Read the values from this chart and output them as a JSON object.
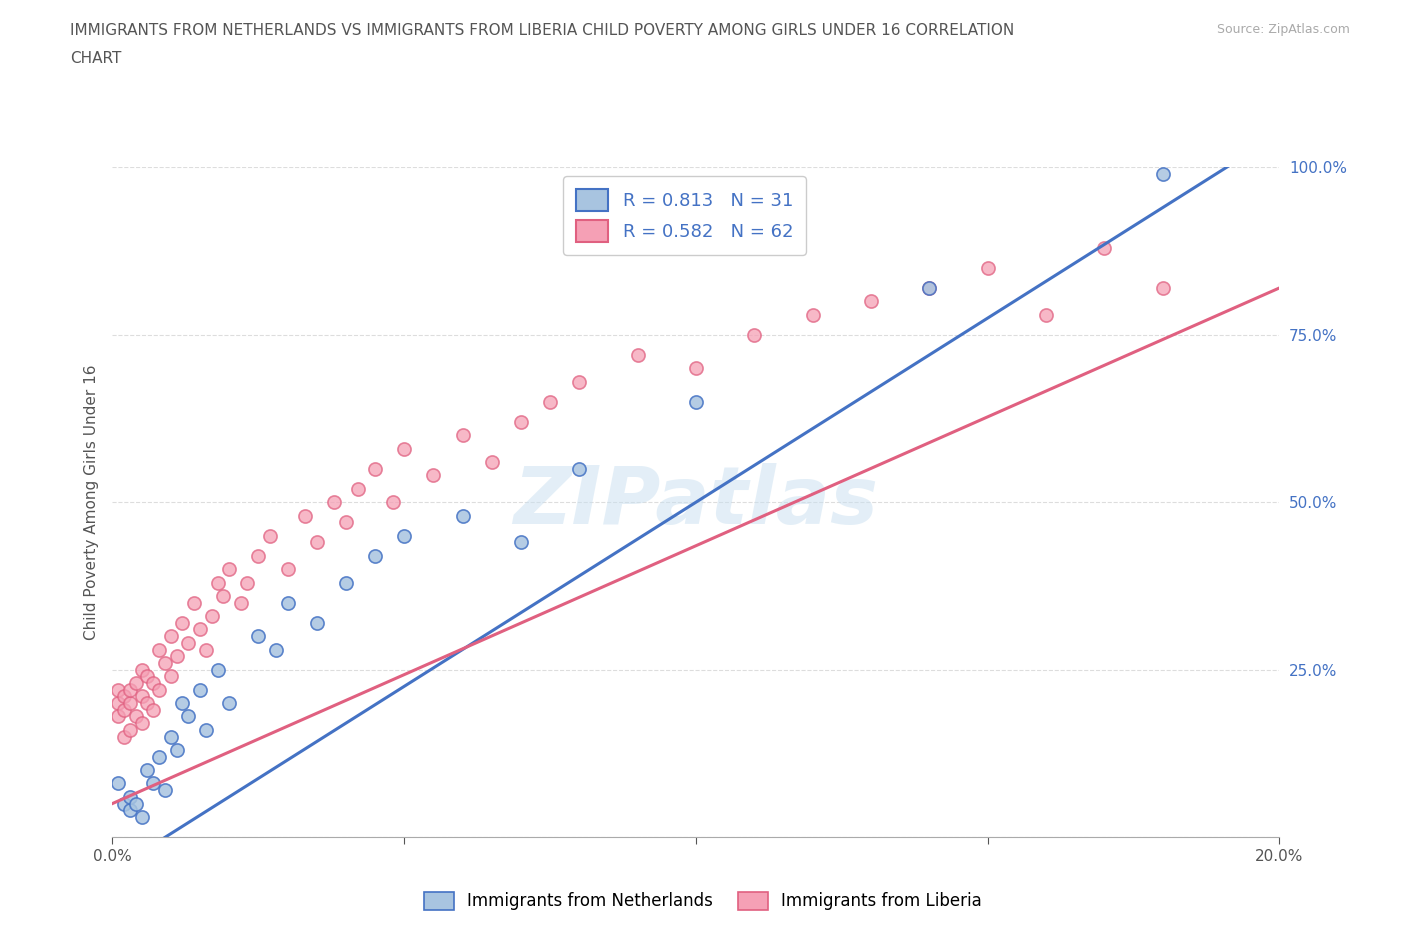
{
  "title_line1": "IMMIGRANTS FROM NETHERLANDS VS IMMIGRANTS FROM LIBERIA CHILD POVERTY AMONG GIRLS UNDER 16 CORRELATION",
  "title_line2": "CHART",
  "source": "Source: ZipAtlas.com",
  "ylabel": "Child Poverty Among Girls Under 16",
  "xlim": [
    0,
    0.2
  ],
  "ylim": [
    0,
    1.0
  ],
  "netherlands_color": "#a8c4e0",
  "liberia_color": "#f5a0b5",
  "netherlands_line_color": "#4472C4",
  "liberia_line_color": "#E06080",
  "R_netherlands": 0.813,
  "N_netherlands": 31,
  "R_liberia": 0.582,
  "N_liberia": 62,
  "watermark": "ZIPatlas",
  "background_color": "#ffffff",
  "grid_color": "#dddddd",
  "netherlands_scatter": [
    [
      0.001,
      0.08
    ],
    [
      0.002,
      0.05
    ],
    [
      0.003,
      0.04
    ],
    [
      0.003,
      0.06
    ],
    [
      0.004,
      0.05
    ],
    [
      0.005,
      0.03
    ],
    [
      0.006,
      0.1
    ],
    [
      0.007,
      0.08
    ],
    [
      0.008,
      0.12
    ],
    [
      0.009,
      0.07
    ],
    [
      0.01,
      0.15
    ],
    [
      0.011,
      0.13
    ],
    [
      0.012,
      0.2
    ],
    [
      0.013,
      0.18
    ],
    [
      0.015,
      0.22
    ],
    [
      0.016,
      0.16
    ],
    [
      0.018,
      0.25
    ],
    [
      0.02,
      0.2
    ],
    [
      0.025,
      0.3
    ],
    [
      0.028,
      0.28
    ],
    [
      0.03,
      0.35
    ],
    [
      0.035,
      0.32
    ],
    [
      0.04,
      0.38
    ],
    [
      0.045,
      0.42
    ],
    [
      0.05,
      0.45
    ],
    [
      0.06,
      0.48
    ],
    [
      0.07,
      0.44
    ],
    [
      0.08,
      0.55
    ],
    [
      0.1,
      0.65
    ],
    [
      0.14,
      0.82
    ],
    [
      0.18,
      0.99
    ]
  ],
  "liberia_scatter": [
    [
      0.001,
      0.2
    ],
    [
      0.001,
      0.18
    ],
    [
      0.001,
      0.22
    ],
    [
      0.002,
      0.15
    ],
    [
      0.002,
      0.19
    ],
    [
      0.002,
      0.21
    ],
    [
      0.003,
      0.16
    ],
    [
      0.003,
      0.2
    ],
    [
      0.003,
      0.22
    ],
    [
      0.004,
      0.18
    ],
    [
      0.004,
      0.23
    ],
    [
      0.005,
      0.17
    ],
    [
      0.005,
      0.21
    ],
    [
      0.005,
      0.25
    ],
    [
      0.006,
      0.2
    ],
    [
      0.006,
      0.24
    ],
    [
      0.007,
      0.19
    ],
    [
      0.007,
      0.23
    ],
    [
      0.008,
      0.22
    ],
    [
      0.008,
      0.28
    ],
    [
      0.009,
      0.26
    ],
    [
      0.01,
      0.24
    ],
    [
      0.01,
      0.3
    ],
    [
      0.011,
      0.27
    ],
    [
      0.012,
      0.32
    ],
    [
      0.013,
      0.29
    ],
    [
      0.014,
      0.35
    ],
    [
      0.015,
      0.31
    ],
    [
      0.016,
      0.28
    ],
    [
      0.017,
      0.33
    ],
    [
      0.018,
      0.38
    ],
    [
      0.019,
      0.36
    ],
    [
      0.02,
      0.4
    ],
    [
      0.022,
      0.35
    ],
    [
      0.023,
      0.38
    ],
    [
      0.025,
      0.42
    ],
    [
      0.027,
      0.45
    ],
    [
      0.03,
      0.4
    ],
    [
      0.033,
      0.48
    ],
    [
      0.035,
      0.44
    ],
    [
      0.038,
      0.5
    ],
    [
      0.04,
      0.47
    ],
    [
      0.042,
      0.52
    ],
    [
      0.045,
      0.55
    ],
    [
      0.048,
      0.5
    ],
    [
      0.05,
      0.58
    ],
    [
      0.055,
      0.54
    ],
    [
      0.06,
      0.6
    ],
    [
      0.065,
      0.56
    ],
    [
      0.07,
      0.62
    ],
    [
      0.075,
      0.65
    ],
    [
      0.08,
      0.68
    ],
    [
      0.09,
      0.72
    ],
    [
      0.1,
      0.7
    ],
    [
      0.11,
      0.75
    ],
    [
      0.12,
      0.78
    ],
    [
      0.13,
      0.8
    ],
    [
      0.14,
      0.82
    ],
    [
      0.15,
      0.85
    ],
    [
      0.16,
      0.78
    ],
    [
      0.17,
      0.88
    ],
    [
      0.18,
      0.82
    ]
  ],
  "netherlands_line": [
    [
      0.0,
      -0.05
    ],
    [
      0.2,
      1.05
    ]
  ],
  "liberia_line": [
    [
      0.0,
      0.05
    ],
    [
      0.2,
      0.82
    ]
  ]
}
